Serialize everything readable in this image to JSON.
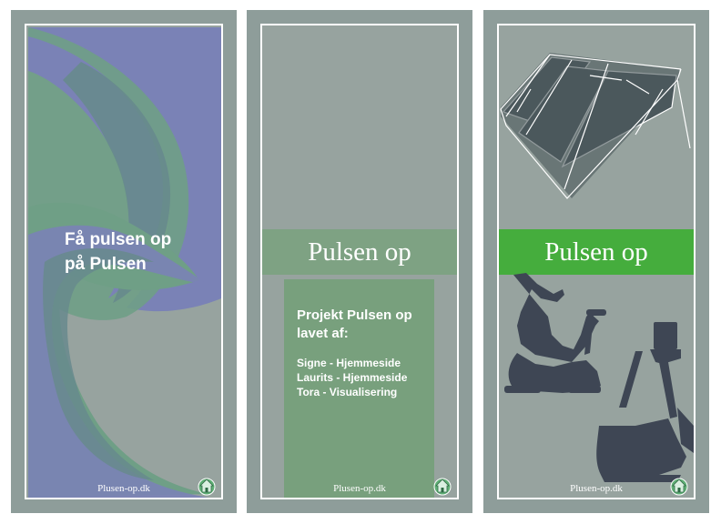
{
  "panel_left": {
    "headline": [
      "Få pulsen op",
      "på Pulsen"
    ],
    "footer": "Plusen-op.dk"
  },
  "panel_middle": {
    "band_title": "Pulsen op",
    "credits_title": [
      "Projekt Pulsen op",
      "lavet af:"
    ],
    "credits": [
      "Signe - Hjemmeside",
      "Laurits - Hjemmeside",
      "Tora - Visualisering"
    ],
    "footer": "Plusen-op.dk"
  },
  "panel_right": {
    "band_title": "Pulsen op",
    "footer": "Plusen-op.dk"
  },
  "colors": {
    "frame": "#8e9d9a",
    "background": "#97a39f",
    "band_middle": "#7ea283",
    "band_right": "#45ad3d",
    "credits_box": "#78a07d",
    "swirl_blue": "#7a82b6",
    "swirl_green": "#6f9f86",
    "equipment": "#3e4654"
  },
  "icons": [
    "swirl-graphic",
    "solar-panel-graphic",
    "exercise-bike-silhouette",
    "treadmill-silhouette",
    "house-logo-icon"
  ]
}
